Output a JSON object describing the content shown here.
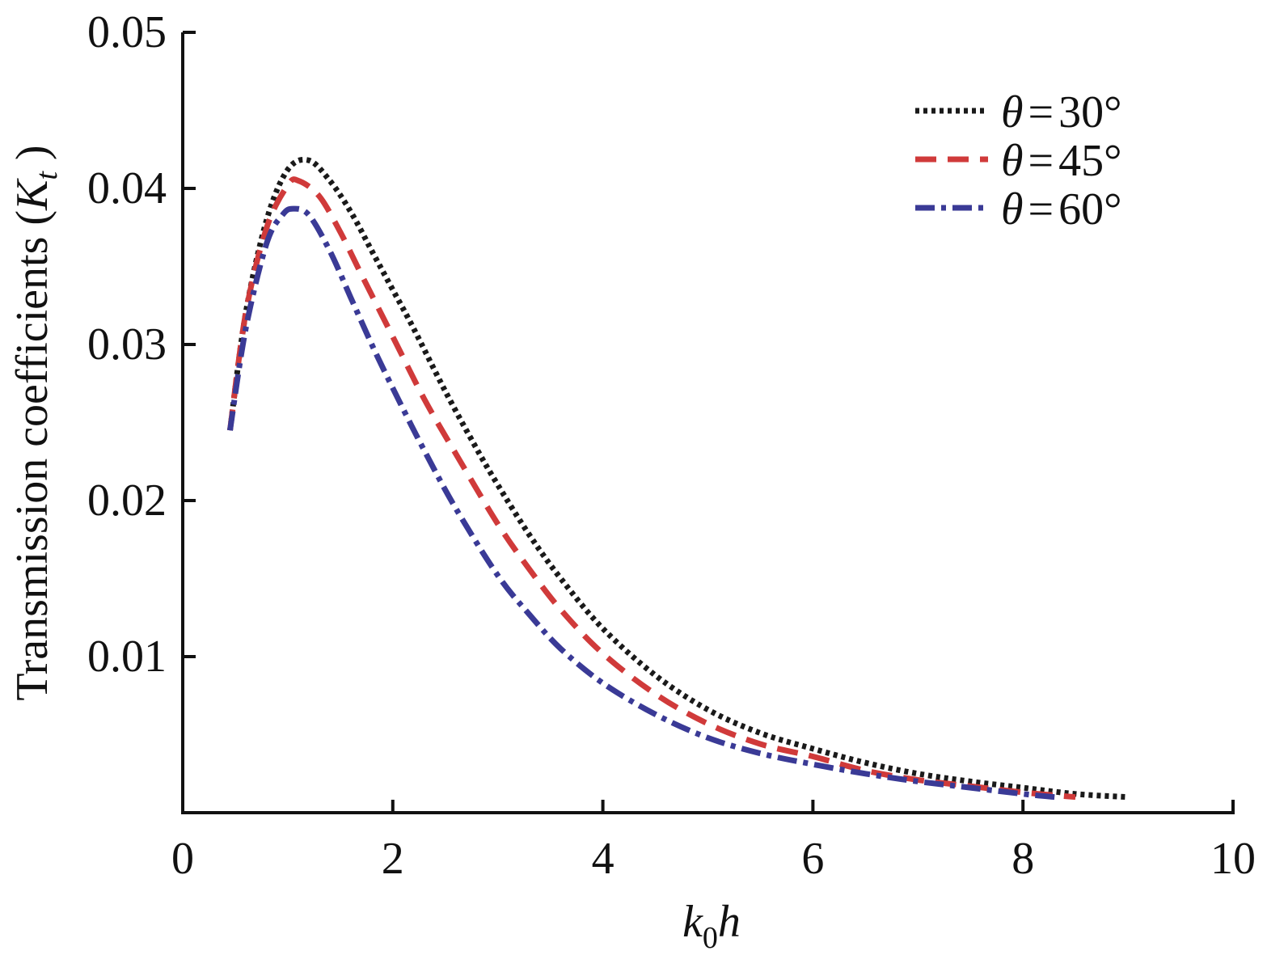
{
  "chart_data": {
    "type": "line",
    "title": "",
    "xlabel": {
      "main": "k",
      "sub": "0",
      "tail": "h"
    },
    "ylabel": {
      "main": "Transmission coefficients (",
      "var": "K",
      "sub": "t",
      "close": " )"
    },
    "xlim": [
      0,
      10
    ],
    "ylim": [
      0,
      0.05
    ],
    "xticks": [
      0,
      2,
      4,
      6,
      8,
      10
    ],
    "xtick_labels": [
      "0",
      "2",
      "4",
      "6",
      "8",
      "10"
    ],
    "yticks": [
      0.01,
      0.02,
      0.03,
      0.04,
      0.05
    ],
    "ytick_labels": [
      "0.01",
      "0.02",
      "0.03",
      "0.04",
      "0.05"
    ],
    "grid": false,
    "legend_position": "top-right",
    "series": [
      {
        "name": "θ = 30°",
        "legend": {
          "var": "θ",
          "eq": "=",
          "value": "30°"
        },
        "color": "#1a1a1a",
        "style": "dotted",
        "x": [
          0.45,
          0.6,
          0.8,
          1.0,
          1.2,
          1.4,
          1.6,
          1.8,
          2.0,
          2.2,
          2.5,
          2.8,
          3.0,
          3.3,
          3.6,
          4.0,
          4.5,
          5.0,
          5.5,
          6.0,
          6.5,
          7.0,
          7.5,
          8.0,
          8.5,
          9.0
        ],
        "y": [
          0.0245,
          0.032,
          0.038,
          0.0412,
          0.0418,
          0.0405,
          0.0385,
          0.036,
          0.0335,
          0.031,
          0.027,
          0.0233,
          0.021,
          0.0178,
          0.015,
          0.0118,
          0.0088,
          0.0066,
          0.0051,
          0.0041,
          0.0032,
          0.0025,
          0.002,
          0.0016,
          0.0012,
          0.001
        ]
      },
      {
        "name": "θ = 45°",
        "legend": {
          "var": "θ",
          "eq": "=",
          "value": "45°"
        },
        "color": "#d03a3a",
        "style": "dashed",
        "x": [
          0.45,
          0.6,
          0.8,
          1.0,
          1.1,
          1.3,
          1.5,
          1.7,
          2.0,
          2.3,
          2.6,
          3.0,
          3.3,
          3.6,
          4.0,
          4.5,
          5.0,
          5.5,
          6.0,
          6.5,
          7.0,
          7.5,
          8.0,
          8.5
        ],
        "y": [
          0.0245,
          0.032,
          0.0375,
          0.0402,
          0.0405,
          0.0395,
          0.0372,
          0.0345,
          0.0305,
          0.0265,
          0.023,
          0.0185,
          0.0156,
          0.013,
          0.0102,
          0.0076,
          0.0057,
          0.0044,
          0.0036,
          0.0027,
          0.0021,
          0.0017,
          0.0013,
          0.001
        ]
      },
      {
        "name": "θ = 60°",
        "legend": {
          "var": "θ",
          "eq": "=",
          "value": "60°"
        },
        "color": "#3a3a96",
        "style": "dashdot",
        "x": [
          0.45,
          0.6,
          0.8,
          0.95,
          1.05,
          1.2,
          1.4,
          1.6,
          1.8,
          2.0,
          2.3,
          2.6,
          3.0,
          3.3,
          3.6,
          4.0,
          4.5,
          5.0,
          5.5,
          6.0,
          6.5,
          7.0,
          7.5,
          8.0,
          8.3
        ],
        "y": [
          0.0245,
          0.031,
          0.0365,
          0.0383,
          0.0387,
          0.0383,
          0.036,
          0.033,
          0.03,
          0.0272,
          0.0232,
          0.0195,
          0.0152,
          0.0127,
          0.0105,
          0.0083,
          0.0063,
          0.0048,
          0.0038,
          0.0031,
          0.0025,
          0.002,
          0.0016,
          0.0012,
          0.001
        ]
      }
    ]
  }
}
